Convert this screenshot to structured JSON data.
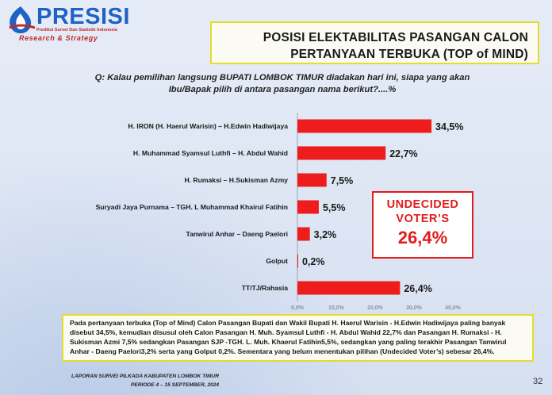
{
  "brand": {
    "name": "PRESISI",
    "subtitle": "Prediksi Survei Dan Statistik Indonesia",
    "tagline": "Research & Strategy"
  },
  "slide": {
    "title_line1": "POSISI ELEKTABILITAS PASANGAN CALON",
    "title_line2": "PERTANYAAN TERBUKA (TOP of MIND)",
    "question_line1": "Q: Kalau pemilihan langsung BUPATI LOMBOK TIMUR diadakan hari ini, siapa yang akan",
    "question_line2": "Ibu/Bapak pilih di antara pasangan nama berikut?....%"
  },
  "chart_data": {
    "type": "bar",
    "orientation": "horizontal",
    "categories": [
      "H. IRON (H. Haerul Warisin) – H.Edwin Hadiwijaya",
      "H. Muhammad Syamsul Luthfi – H. Abdul Wahid",
      "H. Rumaksi – H.Sukisman Azmy",
      "Suryadi Jaya Purnama – TGH. L Muhammad Khairul Fatihin",
      "Tanwirul Anhar – Daeng Paelori",
      "Golput",
      "TT/TJ/Rahasia"
    ],
    "values": [
      34.5,
      22.7,
      7.5,
      5.5,
      3.2,
      0.2,
      26.4
    ],
    "value_labels": [
      "34,5%",
      "22,7%",
      "7,5%",
      "5,5%",
      "3,2%",
      "0,2%",
      "26,4%"
    ],
    "x_ticks": [
      "0,0%",
      "10,0%",
      "20,0%",
      "30,0%",
      "40,0%"
    ],
    "xlim": [
      0,
      40
    ],
    "bar_color": "#ee1c1c",
    "grid": false
  },
  "callout": {
    "label_line1": "UNDECIDED",
    "label_line2": "VOTER’S",
    "value": "26,4%"
  },
  "summary_text": "Pada pertanyaan terbuka (Top of Mind) Calon Pasangan Bupati dan Wakil Bupati H. Haerul Warisin - H.Edwin Hadiwijaya paling banyak disebut 34,5%, kemudian disusul oleh Calon Pasangan H. Muh. Syamsul Luthfi - H. Abdul Wahid 22,7% dan Pasangan H. Rumaksi - H. Sukisman Azmi 7,5% sedangkan Pasangan SJP -TGH. L. Muh. Khaerul Fatihin5,5%, sedangkan yang paling terakhir Pasangan Tanwirul Anhar - Daeng Paelori3,2% serta yang Golput 0,2%. Sementara yang belum menentukan pilihan (Undecided Voter’s) sebesar 26,4%.",
  "footer": {
    "line1": "LAPORAN  SURVEI PILKADA KABUPATEN LOMBOK TIMUR",
    "line2": "PERIODE 4 – 15  SEPTEMBER, 2024"
  },
  "page_number": "32",
  "colors": {
    "accent_red": "#e21b1b",
    "brand_blue": "#1f62c4",
    "box_border_yellow": "#e4dd2a"
  }
}
